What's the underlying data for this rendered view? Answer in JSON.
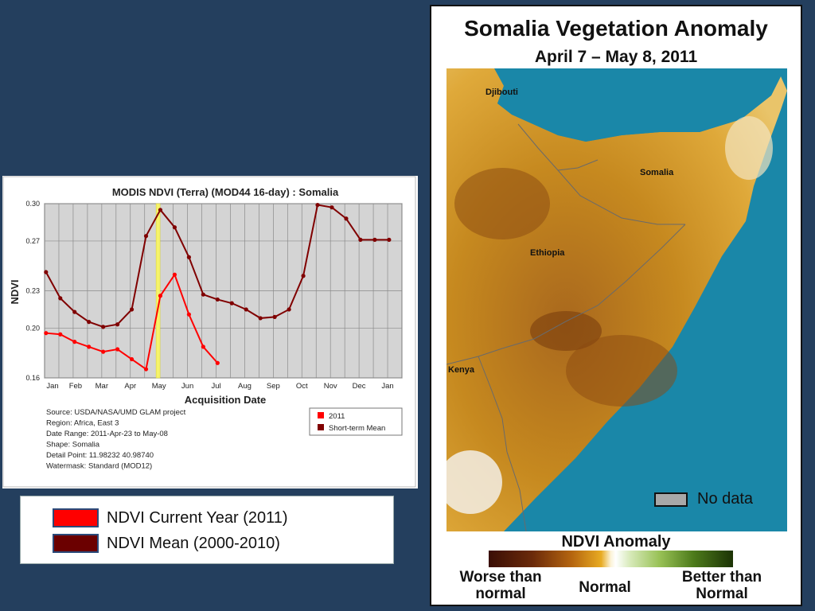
{
  "chart_data": {
    "type": "line",
    "title": "MODIS NDVI (Terra) (MOD44 16-day) : Somalia",
    "xlabel": "Acquisition Date",
    "ylabel": "NDVI",
    "x_ticks": [
      "Jan",
      "Feb",
      "Mar",
      "Apr",
      "May",
      "Jun",
      "Jul",
      "Aug",
      "Sep",
      "Oct",
      "Nov",
      "Dec",
      "Jan"
    ],
    "y_ticks": [
      "0.16",
      "0.20",
      "0.23",
      "0.27",
      "0.30"
    ],
    "ylim": [
      0.16,
      0.3
    ],
    "xlim": [
      0,
      12.5
    ],
    "grid": true,
    "highlight_x": 3.97,
    "series": [
      {
        "name": "2011",
        "color": "#ff0000",
        "x": [
          0.05,
          0.55,
          1.05,
          1.55,
          2.05,
          2.55,
          3.05,
          3.55,
          4.05,
          4.55,
          5.05,
          5.55,
          6.05
        ],
        "y": [
          0.196,
          0.195,
          0.189,
          0.185,
          0.181,
          0.183,
          0.175,
          0.167,
          0.226,
          0.243,
          0.211,
          0.185,
          0.172
        ]
      },
      {
        "name": "Short-term Mean",
        "color": "#800000",
        "x": [
          0.05,
          0.55,
          1.05,
          1.55,
          2.05,
          2.55,
          3.05,
          3.55,
          4.05,
          4.55,
          5.05,
          5.55,
          6.05,
          6.55,
          7.05,
          7.55,
          8.05,
          8.55,
          9.05,
          9.55,
          10.05,
          10.55,
          11.05,
          11.55,
          12.05
        ],
        "y": [
          0.245,
          0.224,
          0.213,
          0.205,
          0.201,
          0.203,
          0.215,
          0.274,
          0.295,
          0.281,
          0.257,
          0.227,
          0.223,
          0.22,
          0.215,
          0.208,
          0.209,
          0.215,
          0.242,
          0.299,
          0.297,
          0.288,
          0.271,
          0.271,
          0.271
        ]
      }
    ],
    "info_lines": [
      "Source: USDA/NASA/UMD GLAM project",
      "Region: Africa, East 3",
      "Date Range: 2011-Apr-23 to May-08",
      "Shape: Somalia",
      "Detail Point: 11.98232 40.98740",
      "Watermask: Standard (MOD12)"
    ]
  },
  "legend": {
    "current_label": "NDVI Current Year (2011)",
    "mean_label": "NDVI Mean (2000-2010)",
    "current_color": "#ff0000",
    "mean_color": "#6b0000"
  },
  "map": {
    "title": "Somalia Vegetation Anomaly",
    "subtitle": "April 7 – May 8, 2011",
    "labels": {
      "djibouti": "Djibouti",
      "somalia": "Somalia",
      "ethiopia": "Ethiopia",
      "kenya": "Kenya"
    },
    "no_data_label": "No data",
    "colorbar_title": "NDVI Anomaly",
    "colorbar_left": "Worse than normal",
    "colorbar_mid": "Normal",
    "colorbar_right": "Better than Normal",
    "ocean_color": "#1a87a8",
    "no_data_color": "#a8a8a8"
  }
}
